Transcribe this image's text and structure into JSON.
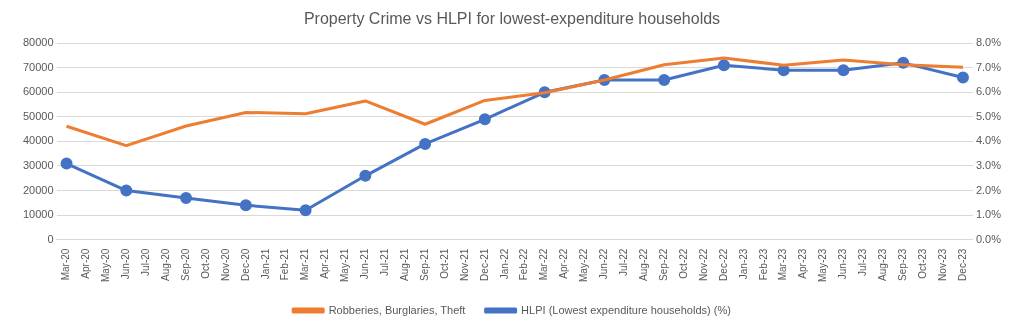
{
  "chart_data": {
    "type": "line",
    "title": "Property Crime vs HLPI for lowest-expenditure households",
    "categories": [
      "Mar-20",
      "Apr-20",
      "May-20",
      "Jun-20",
      "Jul-20",
      "Aug-20",
      "Sep-20",
      "Oct-20",
      "Nov-20",
      "Dec-20",
      "Jan-21",
      "Feb-21",
      "Mar-21",
      "Apr-21",
      "May-21",
      "Jun-21",
      "Jul-21",
      "Aug-21",
      "Sep-21",
      "Oct-21",
      "Nov-21",
      "Dec-21",
      "Jan-22",
      "Feb-22",
      "Mar-22",
      "Apr-22",
      "May-22",
      "Jun-22",
      "Jul-22",
      "Aug-22",
      "Sep-22",
      "Oct-22",
      "Nov-22",
      "Dec-22",
      "Jan-23",
      "Feb-23",
      "Mar-23",
      "Apr-23",
      "May-23",
      "Jun-23",
      "Jul-23",
      "Aug-23",
      "Sep-23",
      "Oct-23",
      "Nov-23",
      "Dec-23"
    ],
    "series": [
      {
        "name": "Robberies, Burglaries, Theft",
        "color": "#ed7d31",
        "marker": "none",
        "values": [
          46200,
          null,
          null,
          38300,
          null,
          null,
          46300,
          null,
          null,
          51800,
          null,
          null,
          51300,
          null,
          null,
          56500,
          null,
          null,
          47000,
          null,
          null,
          56700,
          null,
          null,
          59800,
          null,
          null,
          65000,
          null,
          null,
          71200,
          null,
          null,
          74000,
          null,
          null,
          71000,
          null,
          null,
          73200,
          null,
          null,
          71200,
          null,
          null,
          70200
        ]
      },
      {
        "name": "HLPI (Lowest expenditure households) (%)",
        "color": "#4472c4",
        "marker": "circle",
        "axis": "y2",
        "values": [
          3.1,
          null,
          null,
          2.0,
          null,
          null,
          1.7,
          null,
          null,
          1.4,
          null,
          null,
          1.2,
          null,
          null,
          2.6,
          null,
          null,
          3.9,
          null,
          null,
          4.9,
          null,
          null,
          6.0,
          null,
          null,
          6.5,
          null,
          null,
          6.5,
          null,
          null,
          7.1,
          null,
          null,
          6.9,
          null,
          null,
          6.9,
          null,
          null,
          7.2,
          null,
          null,
          6.6
        ]
      }
    ],
    "ylim": [
      0,
      80000
    ],
    "yticks": [
      0,
      10000,
      20000,
      30000,
      40000,
      50000,
      60000,
      70000,
      80000
    ],
    "y2lim": [
      0,
      8
    ],
    "y2ticks": [
      {
        "value": 0,
        "label": "0.0%"
      },
      {
        "value": 1,
        "label": "1.0%"
      },
      {
        "value": 2,
        "label": "2.0%"
      },
      {
        "value": 3,
        "label": "3.0%"
      },
      {
        "value": 4,
        "label": "4.0%"
      },
      {
        "value": 5,
        "label": "5.0%"
      },
      {
        "value": 6,
        "label": "6.0%"
      },
      {
        "value": 7,
        "label": "7.0%"
      },
      {
        "value": 8,
        "label": "8.0%"
      }
    ],
    "grid": "y",
    "legend": "bottom"
  }
}
